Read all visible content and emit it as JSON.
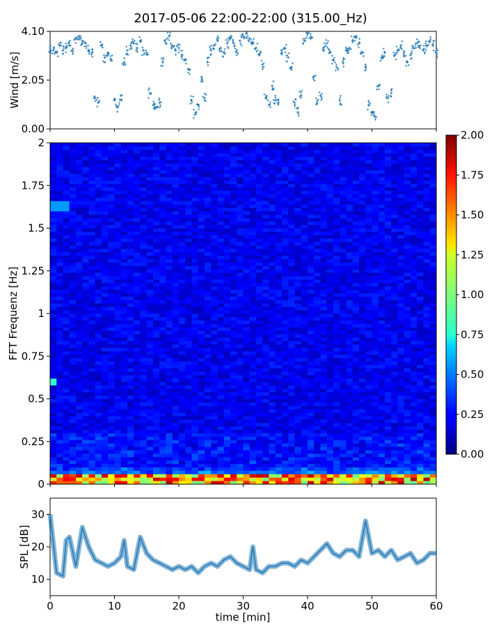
{
  "title": "2017-05-06 22:00-22:00 (315.00_Hz)",
  "chart_data": [
    {
      "type": "scatter",
      "panel": "wind",
      "ylabel": "Wind [m/s]",
      "xlim": [
        0,
        60
      ],
      "ylim": [
        0,
        4.1
      ],
      "yticks": [
        "0.00",
        "2.05",
        "4.10"
      ],
      "marker_color": "#1f77b4",
      "series": [
        {
          "x": [
            0,
            0.5,
            1,
            1.5,
            2,
            2.5,
            3,
            3.5,
            4,
            4.5,
            5,
            5.5,
            6,
            6.5,
            7,
            7.5,
            8,
            8.5,
            9,
            9.5,
            10,
            10.5,
            11,
            11.5,
            12,
            12.5,
            13,
            13.5,
            14,
            14.5,
            15,
            15.5,
            16,
            16.5,
            17,
            17.5,
            18,
            18.5,
            19,
            19.5,
            20,
            20.5,
            21,
            21.5,
            22,
            22.5,
            23,
            23.5,
            24,
            24.5,
            25,
            25.5,
            26,
            26.5,
            27,
            27.5,
            28,
            28.5,
            29,
            29.5,
            30,
            30.5,
            31,
            31.5,
            32,
            32.5,
            33,
            33.5,
            34,
            34.5,
            35,
            35.5,
            36,
            36.5,
            37,
            37.5,
            38,
            38.5,
            39,
            39.5,
            40,
            40.5,
            41,
            41.5,
            42,
            42.5,
            43,
            43.5,
            44,
            44.5,
            45,
            45.5,
            46,
            46.5,
            47,
            47.5,
            48,
            48.5,
            49,
            49.5,
            50,
            50.5,
            51,
            51.5,
            52,
            52.5,
            53,
            53.5,
            54,
            54.5,
            55,
            55.5,
            56,
            56.5,
            57,
            57.5,
            58,
            58.5,
            59,
            59.5,
            60
          ],
          "y": [
            3.4,
            3.3,
            3.2,
            3.5,
            3.3,
            3.4,
            3.5,
            3.3,
            3.8,
            3.9,
            3.7,
            3.6,
            3.3,
            3.2,
            1.3,
            1.1,
            3.5,
            3.0,
            3.2,
            2.9,
            1.2,
            0.9,
            1.4,
            2.8,
            3.3,
            3.5,
            3.6,
            3.4,
            3.7,
            3.3,
            3.2,
            1.5,
            1.0,
            0.9,
            1.1,
            2.8,
            3.6,
            3.9,
            3.5,
            3.3,
            3.4,
            3.1,
            2.9,
            2.5,
            1.2,
            0.6,
            1.0,
            2.0,
            1.3,
            2.8,
            3.3,
            3.5,
            3.7,
            3.4,
            3.2,
            3.6,
            3.8,
            3.6,
            3.3,
            3.7,
            3.9,
            4.0,
            3.8,
            3.6,
            3.4,
            3.1,
            2.7,
            1.3,
            1.0,
            1.8,
            1.2,
            1.1,
            3.2,
            3.4,
            3.0,
            2.6,
            1.1,
            0.7,
            1.4,
            3.7,
            4.0,
            3.8,
            2.2,
            1.1,
            1.4,
            3.4,
            3.6,
            3.2,
            2.9,
            2.6,
            1.2,
            2.8,
            3.3,
            3.4,
            3.7,
            3.9,
            3.6,
            3.2,
            2.6,
            1.0,
            0.7,
            0.5,
            1.8,
            3.0,
            3.2,
            1.3,
            1.5,
            3.1,
            3.3,
            3.5,
            3.1,
            2.8,
            3.1,
            3.4,
            3.6,
            3.5,
            3.3,
            3.5,
            3.7,
            3.5,
            3.2
          ]
        }
      ]
    },
    {
      "type": "heatmap",
      "panel": "spectrogram",
      "ylabel": "FFT Frequenz [Hz]",
      "xlim": [
        0,
        60
      ],
      "ylim": [
        0,
        2
      ],
      "yticks": [
        "0",
        "0.25",
        "0.5",
        "0.75",
        "1",
        "1.25",
        "1.5",
        "1.75",
        "2"
      ],
      "colorbar": {
        "range": [
          0,
          2
        ],
        "ticks": [
          "0.00",
          "0.25",
          "0.50",
          "0.75",
          "1.00",
          "1.25",
          "1.50",
          "1.75",
          "2.00"
        ],
        "colormap": "jet"
      },
      "pattern": {
        "background_level": 0.22,
        "low_frequency_peak_level": 1.9,
        "low_frequency_band_hz": [
          0,
          0.05
        ],
        "bright_bands": [
          {
            "x": [
              0,
              3
            ],
            "y": [
              1.6,
              1.65
            ],
            "level": 0.55
          },
          {
            "x": [
              0,
              1
            ],
            "y": [
              0.57,
              0.62
            ],
            "level": 0.85
          }
        ]
      }
    },
    {
      "type": "line",
      "panel": "spl",
      "ylabel": "SPL [dB]",
      "xlabel": "time [min]",
      "xlim": [
        0,
        60
      ],
      "ylim": [
        5,
        35
      ],
      "xticks": [
        "0",
        "10",
        "20",
        "30",
        "40",
        "50",
        "60"
      ],
      "yticks": [
        "10",
        "20",
        "30"
      ],
      "line_color": "#1f77b4",
      "series": [
        {
          "x": [
            0,
            1,
            2,
            2.5,
            3,
            4,
            5,
            6,
            7,
            8,
            9,
            10,
            11,
            11.5,
            12,
            13,
            14,
            15,
            16,
            17,
            18,
            19,
            20,
            21,
            22,
            23,
            24,
            25,
            26,
            27,
            28,
            29,
            30,
            31,
            31.5,
            32,
            33,
            34,
            35,
            36,
            37,
            38,
            39,
            40,
            41,
            42,
            43,
            44,
            45,
            46,
            47,
            48,
            49,
            50,
            51,
            52,
            53,
            54,
            55,
            56,
            57,
            58,
            59,
            60
          ],
          "y": [
            30,
            12,
            11,
            22,
            23,
            14,
            26,
            20,
            16,
            15,
            14,
            15,
            17,
            22,
            14,
            13,
            23,
            18,
            16,
            15,
            14,
            13,
            14,
            13,
            14,
            12,
            14,
            15,
            14,
            16,
            17,
            15,
            14,
            13,
            20,
            13,
            12,
            14,
            14,
            15,
            15,
            14,
            16,
            15,
            17,
            19,
            21,
            18,
            17,
            19,
            19,
            17,
            28,
            18,
            19,
            17,
            19,
            16,
            17,
            18,
            15,
            16,
            18,
            18
          ]
        }
      ]
    }
  ]
}
